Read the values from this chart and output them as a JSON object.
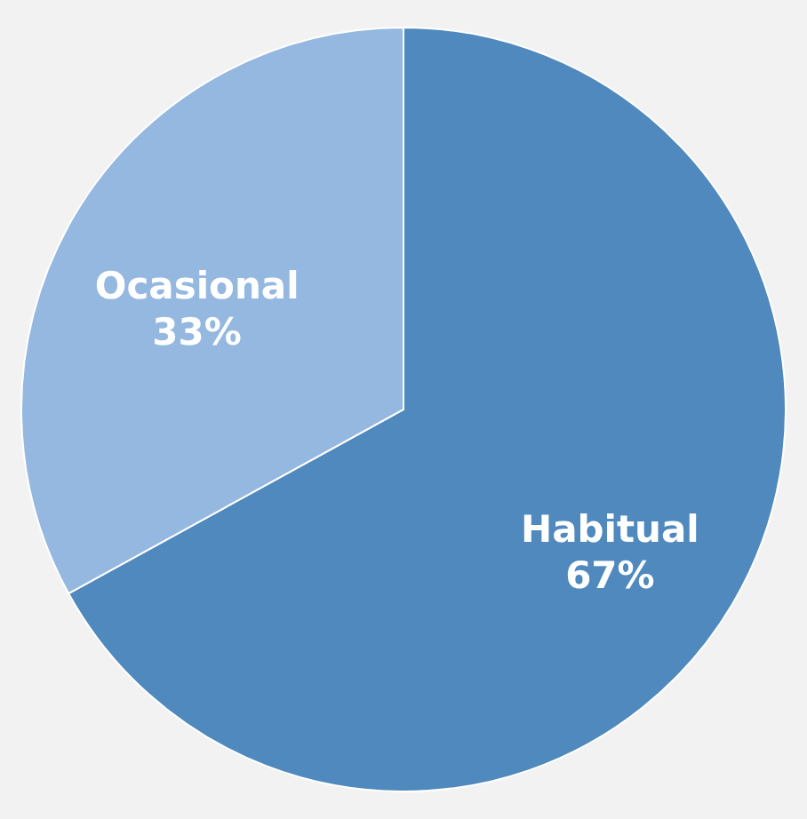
{
  "chart_data": {
    "type": "pie",
    "categories": [
      "Habitual",
      "Ocasional"
    ],
    "values": [
      67,
      33
    ],
    "value_labels": [
      "67%",
      "33%"
    ],
    "colors": [
      "#4f89bd",
      "#95b8e0"
    ],
    "legend": false
  }
}
